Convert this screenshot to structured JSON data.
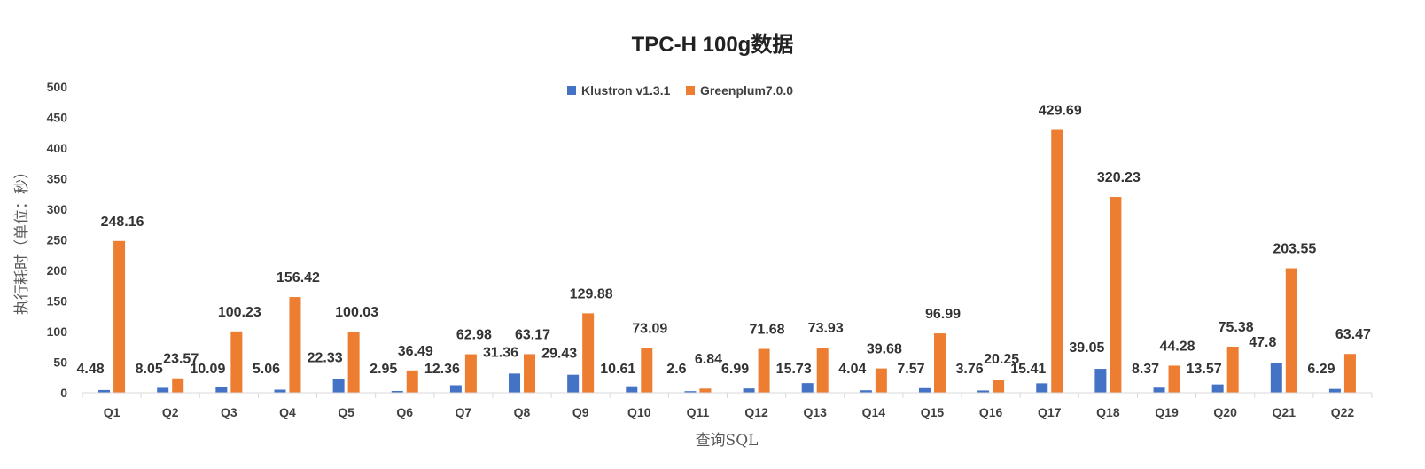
{
  "chart_data": {
    "type": "bar",
    "title": "TPC-H 100g数据",
    "xlabel": "查询SQL",
    "ylabel": "执行耗时（单位：秒）",
    "ylim": [
      0,
      500
    ],
    "yticks": [
      0,
      50,
      100,
      150,
      200,
      250,
      300,
      350,
      400,
      450,
      500
    ],
    "grid": false,
    "legend_position": "top",
    "categories": [
      "Q1",
      "Q2",
      "Q3",
      "Q4",
      "Q5",
      "Q6",
      "Q7",
      "Q8",
      "Q9",
      "Q10",
      "Q11",
      "Q12",
      "Q13",
      "Q14",
      "Q15",
      "Q16",
      "Q17",
      "Q18",
      "Q19",
      "Q20",
      "Q21",
      "Q22"
    ],
    "series": [
      {
        "name": "Klustron v1.3.1",
        "color": "#4472C4",
        "values": [
          4.48,
          8.05,
          10.09,
          5.06,
          22.33,
          2.95,
          12.36,
          31.36,
          29.43,
          10.61,
          2.6,
          6.99,
          15.73,
          4.04,
          7.57,
          3.76,
          15.41,
          39.05,
          8.37,
          13.57,
          47.8,
          6.29
        ]
      },
      {
        "name": "Greenplum7.0.0",
        "color": "#ED7D31",
        "values": [
          248.16,
          23.57,
          100.23,
          156.42,
          100.03,
          36.49,
          62.98,
          63.17,
          129.88,
          73.09,
          6.84,
          71.68,
          73.93,
          39.68,
          96.99,
          20.25,
          429.69,
          320.23,
          44.28,
          75.38,
          203.55,
          63.47
        ]
      }
    ]
  }
}
